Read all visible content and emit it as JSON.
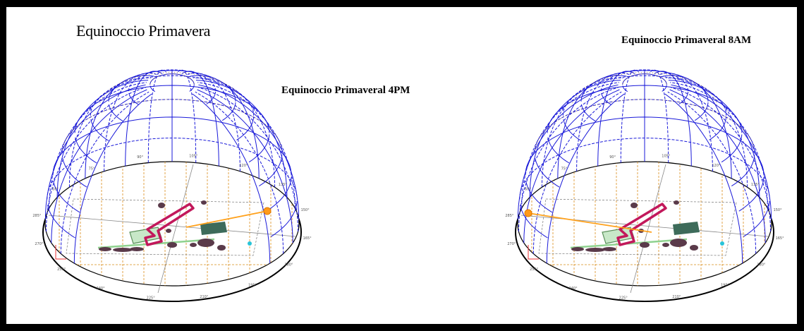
{
  "title": "Equinoccio Primavera",
  "panels": [
    {
      "label": "Equinoccio Primaveral 4PM",
      "sun_side": "right",
      "degree_labels": [
        "285°",
        "270°",
        "255°",
        "240°",
        "225°",
        "210°",
        "195°",
        "180°",
        "165°",
        "150°",
        "135°",
        "120°",
        "105°",
        "90°",
        "75°",
        "60°"
      ]
    },
    {
      "label": "Equinoccio Primaveral 8AM",
      "sun_side": "left",
      "degree_labels": [
        "285°",
        "270°",
        "255°",
        "240°",
        "225°",
        "210°",
        "195°",
        "180°",
        "165°",
        "150°",
        "135°",
        "120°",
        "105°",
        "90°",
        "75°",
        "60°"
      ]
    }
  ],
  "colors": {
    "sky_grid": "#1a1ad9",
    "horizon": "#000000",
    "ground_grid": "#d98c1a",
    "sun": "#ff9a1a",
    "sun_ray": "#ffa01a",
    "building": "#c2185b",
    "plaza": "#5a8f5a",
    "path": "#8fd28f",
    "obstacles": "#5a3a4a",
    "water": "#29c4d9",
    "axes": "#888888"
  }
}
